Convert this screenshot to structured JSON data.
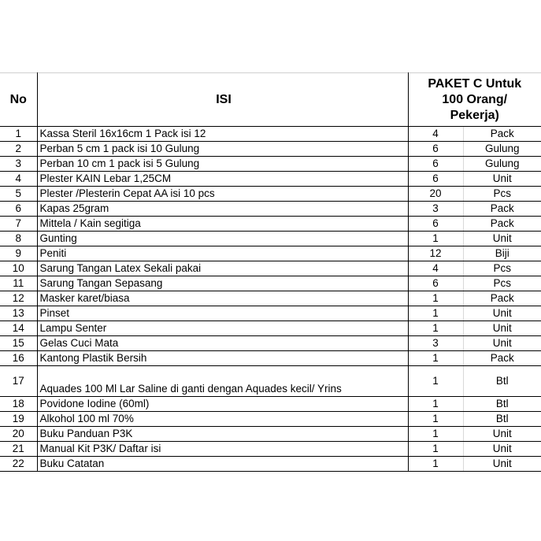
{
  "headers": {
    "no": "No",
    "isi": "ISI",
    "paket_line1": "PAKET C Untuk",
    "paket_line2": "100 Orang/",
    "paket_line3": "Pekerja)"
  },
  "rows": [
    {
      "no": "1",
      "isi": "Kassa Steril 16x16cm 1 Pack isi 12",
      "qty": "4",
      "unit": "Pack"
    },
    {
      "no": "2",
      "isi": "Perban 5 cm 1 pack isi 10 Gulung",
      "qty": "6",
      "unit": "Gulung"
    },
    {
      "no": "3",
      "isi": "Perban 10 cm 1 pack isi 5 Gulung",
      "qty": "6",
      "unit": "Gulung"
    },
    {
      "no": "4",
      "isi": "Plester KAIN Lebar 1,25CM",
      "qty": "6",
      "unit": "Unit"
    },
    {
      "no": "5",
      "isi": "Plester /Plesterin Cepat AA isi 10 pcs",
      "qty": "20",
      "unit": "Pcs"
    },
    {
      "no": "6",
      "isi": "Kapas 25gram",
      "qty": "3",
      "unit": "Pack"
    },
    {
      "no": "7",
      "isi": "Mittela / Kain segitiga",
      "qty": "6",
      "unit": "Pack"
    },
    {
      "no": "8",
      "isi": "Gunting",
      "qty": "1",
      "unit": "Unit"
    },
    {
      "no": "9",
      "isi": "Peniti",
      "qty": "12",
      "unit": "Biji"
    },
    {
      "no": "10",
      "isi": "Sarung Tangan Latex Sekali pakai",
      "qty": "4",
      "unit": "Pcs"
    },
    {
      "no": "11",
      "isi": "Sarung Tangan Sepasang",
      "qty": "6",
      "unit": "Pcs"
    },
    {
      "no": "12",
      "isi": "Masker karet/biasa",
      "qty": "1",
      "unit": "Pack"
    },
    {
      "no": "13",
      "isi": "Pinset",
      "qty": "1",
      "unit": "Unit"
    },
    {
      "no": "14",
      "isi": "Lampu Senter",
      "qty": "1",
      "unit": "Unit"
    },
    {
      "no": "15",
      "isi": "Gelas Cuci Mata",
      "qty": "3",
      "unit": "Unit"
    },
    {
      "no": "16",
      "isi": "Kantong Plastik Bersih",
      "qty": "1",
      "unit": "Pack"
    },
    {
      "no": "17",
      "isi": "Aquades 100 Ml Lar Saline di ganti dengan Aquades kecil/ Yrins",
      "qty": "1",
      "unit": "Btl"
    },
    {
      "no": "18",
      "isi": "Povidone Iodine (60ml)",
      "qty": "1",
      "unit": "Btl"
    },
    {
      "no": "19",
      "isi": "Alkohol 100 ml 70%",
      "qty": "1",
      "unit": "Btl"
    },
    {
      "no": "20",
      "isi": "Buku Panduan P3K",
      "qty": "1",
      "unit": "Unit"
    },
    {
      "no": "21",
      "isi": "Manual Kit P3K/ Daftar isi",
      "qty": "1",
      "unit": "Unit"
    },
    {
      "no": "22",
      "isi": "Buku Catatan",
      "qty": "1",
      "unit": "Unit"
    }
  ]
}
